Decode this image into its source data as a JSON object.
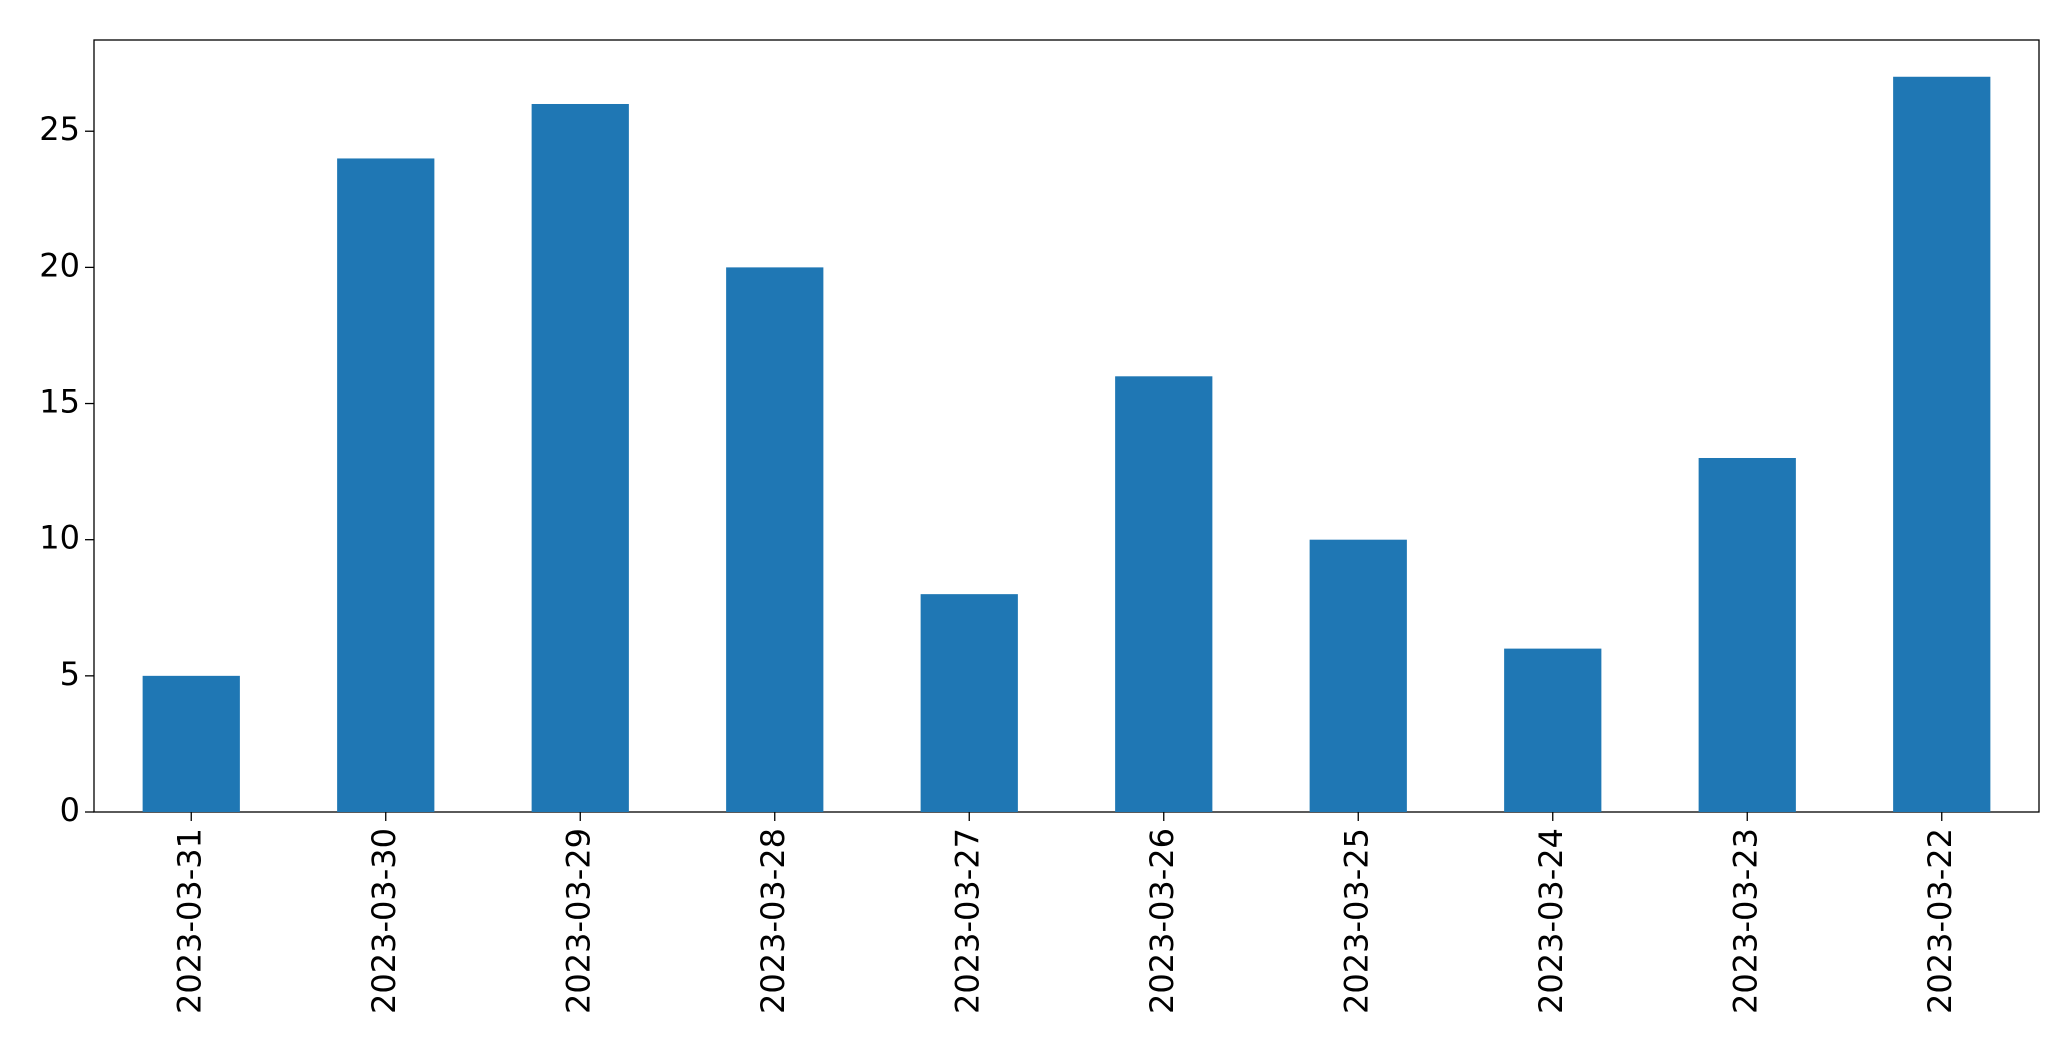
{
  "chart_data": {
    "type": "bar",
    "categories": [
      "2023-03-31",
      "2023-03-30",
      "2023-03-29",
      "2023-03-28",
      "2023-03-27",
      "2023-03-26",
      "2023-03-25",
      "2023-03-24",
      "2023-03-23",
      "2023-03-22"
    ],
    "values": [
      5,
      24,
      26,
      20,
      8,
      16,
      10,
      6,
      13,
      27
    ],
    "color": "#1f77b4",
    "ylim": [
      0,
      28.35
    ],
    "yticks": [
      0,
      5,
      10,
      15,
      20,
      25
    ],
    "grid": false
  }
}
